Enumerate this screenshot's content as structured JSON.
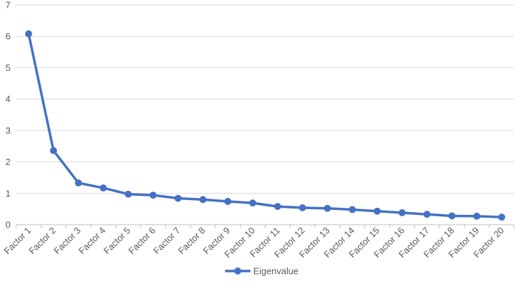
{
  "chart_data": {
    "type": "line",
    "title": "",
    "xlabel": "",
    "ylabel": "",
    "categories": [
      "Factor 1",
      "Factor 2",
      "Factor 3",
      "Factor 4",
      "Factor 5",
      "Factor 6",
      "Factor 7",
      "Factor 8",
      "Factor 9",
      "Factor 10",
      "Factor 11",
      "Factor 12",
      "Factor 13",
      "Factor 14",
      "Factor 15",
      "Factor 16",
      "Factor 17",
      "Factor 18",
      "Factor 19",
      "Factor 20"
    ],
    "series": [
      {
        "name": "Eigenvalue",
        "color": "#4472C4",
        "values": [
          6.08,
          2.36,
          1.33,
          1.17,
          0.97,
          0.94,
          0.84,
          0.8,
          0.74,
          0.69,
          0.58,
          0.54,
          0.52,
          0.48,
          0.43,
          0.38,
          0.33,
          0.28,
          0.27,
          0.24
        ]
      }
    ],
    "ylim": [
      0,
      7
    ],
    "yticks": [
      0,
      1,
      2,
      3,
      4,
      5,
      6,
      7
    ],
    "grid": true,
    "gridColor": "#d9d9d9",
    "legend": "bottom-center"
  }
}
